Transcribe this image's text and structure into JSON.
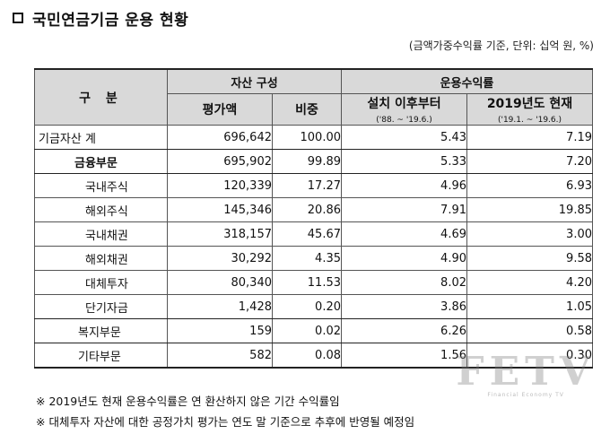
{
  "title": "국민연금기금 운용 현황",
  "unit_note": "(금액가중수익률 기준, 단위: 십억 원, %)",
  "headers": {
    "gubun": "구 분",
    "asset_group": "자산 구성",
    "return_group": "운용수익률",
    "valuation": "평가액",
    "weight": "비중",
    "since_inception": "설치 이후부터",
    "since_inception_range": "('88. ~ '19.6.)",
    "year_2019": "2019년도 현재",
    "year_2019_range": "('19.1. ~ '19.6.)"
  },
  "rows": [
    {
      "label": "기금자산 계",
      "valuation": "696,642",
      "weight": "100.00",
      "since": "5.43",
      "current": "7.19"
    },
    {
      "label": "금융부문",
      "valuation": "695,902",
      "weight": "99.89",
      "since": "5.33",
      "current": "7.20"
    },
    {
      "label": "국내주식",
      "valuation": "120,339",
      "weight": "17.27",
      "since": "4.96",
      "current": "6.93"
    },
    {
      "label": "해외주식",
      "valuation": "145,346",
      "weight": "20.86",
      "since": "7.91",
      "current": "19.85"
    },
    {
      "label": "국내채권",
      "valuation": "318,157",
      "weight": "45.67",
      "since": "4.69",
      "current": "3.00"
    },
    {
      "label": "해외채권",
      "valuation": "30,292",
      "weight": "4.35",
      "since": "4.90",
      "current": "9.58"
    },
    {
      "label": "대체투자",
      "valuation": "80,340",
      "weight": "11.53",
      "since": "8.02",
      "current": "4.20"
    },
    {
      "label": "단기자금",
      "valuation": "1,428",
      "weight": "0.20",
      "since": "3.86",
      "current": "1.05"
    },
    {
      "label": "복지부문",
      "valuation": "159",
      "weight": "0.02",
      "since": "6.26",
      "current": "0.58"
    },
    {
      "label": "기타부문",
      "valuation": "582",
      "weight": "0.08",
      "since": "1.56",
      "current": "0.30"
    }
  ],
  "notes": [
    "※ 2019년도 현재 운용수익률은 연 환산하지 않은 기간 수익률임",
    "※ 대체투자 자산에 대한 공정가치 평가는 연도 말 기준으로 추후에 반영될 예정임"
  ],
  "watermark": {
    "big": "FETV",
    "small": "Financial Economy TV"
  }
}
